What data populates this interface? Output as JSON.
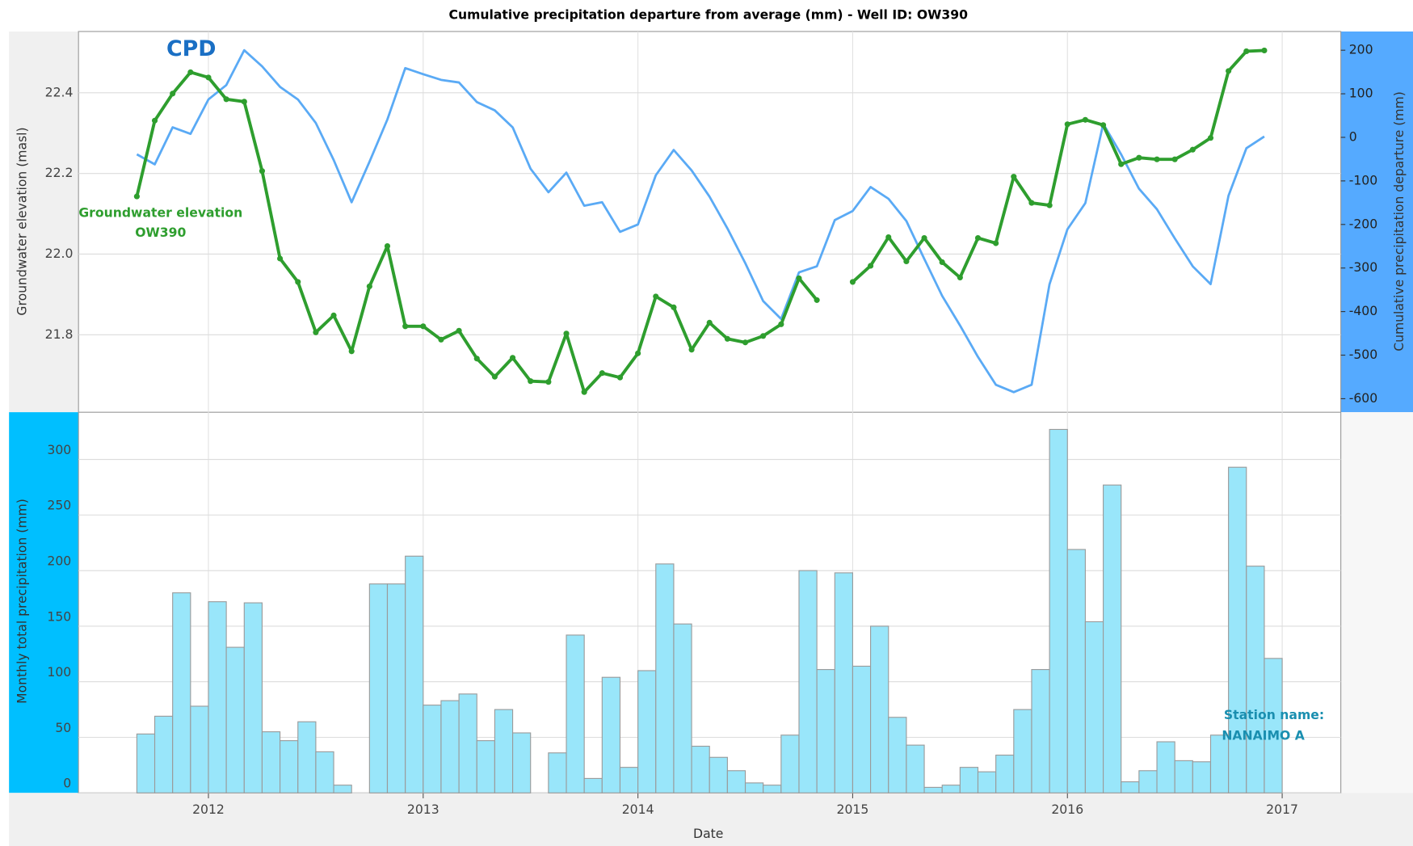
{
  "chart_data": [
    {
      "type": "line",
      "title": "Cumulative precipitation departure from average (mm) - Well ID: OW390",
      "ylabel": "Groundwater elevation (masl)",
      "y2label": "Cumulative precipitation departure (mm)",
      "xlim": [
        2011.395,
        2017.273
      ],
      "ylim": [
        21.608,
        22.552
      ],
      "yticks": [
        21.8,
        {
          "value": 22,
          "label": "22.0"
        },
        22.2,
        22.4
      ],
      "y2lim": [
        -631,
        243
      ],
      "y2ticks": [
        -600,
        -500,
        -400,
        -300,
        -200,
        -100,
        0,
        100,
        200
      ],
      "grid": true,
      "x": [
        2011.6667,
        2011.75,
        2011.8333,
        2011.9167,
        2012,
        2012.0833,
        2012.1667,
        2012.25,
        2012.3333,
        2012.4167,
        2012.5,
        2012.5833,
        2012.6667,
        2012.75,
        2012.8333,
        2012.9167,
        2013,
        2013.0833,
        2013.1667,
        2013.25,
        2013.3333,
        2013.4167,
        2013.5,
        2013.5833,
        2013.6667,
        2013.75,
        2013.8333,
        2013.9167,
        2014,
        2014.0833,
        2014.1667,
        2014.25,
        2014.3333,
        2014.4167,
        2014.5,
        2014.5833,
        2014.6667,
        2014.75,
        2014.8333,
        2014.9167,
        2015,
        2015.0833,
        2015.1667,
        2015.25,
        2015.3333,
        2015.4167,
        2015.5,
        2015.5833,
        2015.6667,
        2015.75,
        2015.8333,
        2015.9167,
        2016,
        2016.0833,
        2016.1667,
        2016.25,
        2016.3333,
        2016.4167,
        2016.5,
        2016.5833,
        2016.6667,
        2016.75,
        2016.8333,
        2016.9167
      ],
      "series": [
        {
          "name": "Groundwater elevation",
          "sublabel": "OW390",
          "color": "#2e9e2e",
          "values": [
            22.143,
            22.331,
            22.398,
            22.451,
            22.438,
            22.384,
            22.378,
            22.206,
            21.989,
            21.931,
            21.806,
            21.848,
            21.759,
            21.92,
            22.02,
            21.821,
            21.821,
            21.788,
            21.81,
            21.741,
            21.696,
            21.743,
            21.685,
            21.683,
            21.803,
            21.658,
            21.705,
            21.694,
            21.754,
            21.895,
            21.868,
            21.763,
            21.83,
            21.79,
            21.781,
            21.797,
            21.826,
            21.94,
            21.886,
            null,
            21.931,
            21.971,
            22.042,
            21.982,
            22.04,
            21.98,
            21.942,
            22.04,
            22.027,
            22.192,
            22.127,
            22.121,
            22.322,
            22.333,
            22.32,
            22.223,
            22.239,
            22.235,
            22.235,
            22.259,
            22.288,
            22.454,
            22.503,
            22.505
          ]
        },
        {
          "name": "CPD",
          "color": "#5aaaf5",
          "label_color": "#1a6fc4",
          "axis": "y2",
          "values": [
            -39,
            -62,
            23,
            8,
            87,
            120,
            200,
            163,
            116,
            87,
            33,
            -52,
            -149,
            -56,
            41,
            159,
            145,
            132,
            126,
            81,
            62,
            23,
            -72,
            -126,
            -81,
            -157,
            -149,
            -217,
            -200,
            -87,
            -29,
            -76,
            -136,
            -209,
            -289,
            -376,
            -417,
            -310,
            -296,
            -190,
            -169,
            -114,
            -141,
            -192,
            -279,
            -364,
            -432,
            -504,
            -568,
            -585,
            -568,
            -337,
            -211,
            -151,
            31,
            -39,
            -118,
            -165,
            -232,
            -296,
            -337,
            -134,
            -25,
            2
          ]
        }
      ]
    },
    {
      "type": "histogram",
      "ylabel": "Monthly total precipitation (mm)",
      "xlabel": "Date",
      "xlim": [
        2011.395,
        2017.273
      ],
      "xticks": [
        2012,
        2013,
        2014,
        2015,
        2016,
        2017
      ],
      "ylim": [
        0,
        342.5
      ],
      "yticks": [
        0,
        50,
        100,
        150,
        200,
        250,
        300
      ],
      "grid": true,
      "color": "#99e6fa",
      "edge_color": "#9a9a9a",
      "annotation_color": "#1a8fb0",
      "annotations": [
        "Station name:",
        "NANAIMO A"
      ],
      "bins": [
        2011.6667,
        2011.75,
        2011.8333,
        2011.9167,
        2012,
        2012.0833,
        2012.1667,
        2012.25,
        2012.3333,
        2012.4167,
        2012.5,
        2012.5833,
        2012.6667,
        2012.75,
        2012.8333,
        2012.9167,
        2013,
        2013.0833,
        2013.1667,
        2013.25,
        2013.3333,
        2013.4167,
        2013.5,
        2013.5833,
        2013.6667,
        2013.75,
        2013.8333,
        2013.9167,
        2014,
        2014.0833,
        2014.1667,
        2014.25,
        2014.3333,
        2014.4167,
        2014.5,
        2014.5833,
        2014.6667,
        2014.75,
        2014.8333,
        2014.9167,
        2015,
        2015.0833,
        2015.1667,
        2015.25,
        2015.3333,
        2015.4167,
        2015.5,
        2015.5833,
        2015.6667,
        2015.75,
        2015.8333,
        2015.9167,
        2016,
        2016.0833,
        2016.1667,
        2016.25,
        2016.3333,
        2016.4167,
        2016.5,
        2016.5833,
        2016.6667,
        2016.75,
        2016.8333,
        2016.9167,
        2017
      ],
      "values": [
        53,
        69,
        180,
        78,
        172,
        131,
        171,
        55,
        47,
        64,
        37,
        7,
        0,
        188,
        188,
        213,
        79,
        83,
        89,
        47,
        75,
        54,
        0,
        36,
        142,
        13,
        104,
        23,
        110,
        206,
        152,
        42,
        32,
        20,
        9,
        7,
        52,
        200,
        111,
        198,
        114,
        150,
        68,
        43,
        5,
        7,
        23,
        19,
        34,
        75,
        111,
        327,
        219,
        154,
        277,
        10,
        20,
        46,
        29,
        28,
        52,
        293,
        204,
        121
      ]
    }
  ]
}
